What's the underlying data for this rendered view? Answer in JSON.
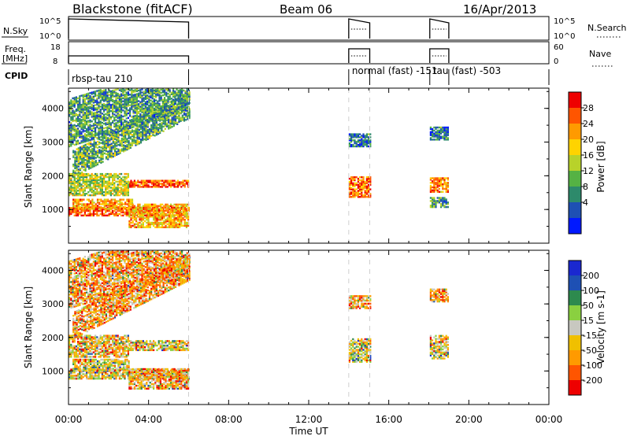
{
  "header": {
    "title_left": "Blackstone (fitACF)",
    "title_center": "Beam 06",
    "title_right": "16/Apr/2013"
  },
  "aux_panels": {
    "nsky_label": "N.Sky",
    "nsky_ticks": [
      "10^5",
      "10^0"
    ],
    "nsky_right_ticks": [
      "10^5",
      "10^0"
    ],
    "nsearch_label": "N.Search",
    "freq_label_1": "Freq.",
    "freq_label_2": "[MHz]",
    "freq_ticks": [
      "18",
      "8"
    ],
    "nave_label": "Nave",
    "nave_ticks": [
      "60",
      "0"
    ],
    "cpid_label": "CPID",
    "cpid_segments": [
      {
        "label": "rbsp-tau 210",
        "start_h": 0.0,
        "end_h": 6.0
      },
      {
        "label": "normal (fast) -151",
        "start_h": 14.0,
        "end_h": 15.05
      },
      {
        "label": "tau (fast) -503",
        "start_h": 18.05,
        "end_h": 19.0
      }
    ]
  },
  "colors": {
    "power": [
      "#0019ff",
      "#1e50b4",
      "#2d8a6b",
      "#55b244",
      "#b8d22a",
      "#ffd300",
      "#ff9a00",
      "#ff5500",
      "#ee0000"
    ],
    "velocity": [
      "#ee0000",
      "#ff5500",
      "#ff9a00",
      "#f0c000",
      "#c8c8c0",
      "#8ad040",
      "#2d8a4e",
      "#1e50b4",
      "#1a28d0"
    ]
  },
  "chart_data": [
    {
      "type": "heatmap",
      "name": "power",
      "ylabel": "Slant Range [km]",
      "xlabel": "Time UT",
      "xlim": [
        0,
        24
      ],
      "ylim": [
        0,
        4600
      ],
      "yticks": [
        "1000",
        "2000",
        "3000",
        "4000"
      ],
      "xticks": [
        "00:00",
        "04:00",
        "08:00",
        "12:00",
        "16:00",
        "20:00",
        "00:00"
      ],
      "colorbar_label": "Power [dB]",
      "colorbar_ticks": [
        "4",
        "8",
        "12",
        "16",
        "20",
        "24",
        "28"
      ],
      "regions": [
        {
          "t": [
            0.0,
            6.0
          ],
          "r": [
            850,
            1100
          ],
          "level": 0.9,
          "slope": 0
        },
        {
          "t": [
            0.2,
            3.2
          ],
          "r": [
            1050,
            1350
          ],
          "level": 0.75,
          "slope": 0
        },
        {
          "t": [
            3.0,
            6.0
          ],
          "r": [
            1700,
            1900
          ],
          "level": 0.9,
          "slope": 0
        },
        {
          "t": [
            0.0,
            3.0
          ],
          "r": [
            1450,
            2100
          ],
          "level": 0.5,
          "slope": 0
        },
        {
          "t": [
            3.0,
            6.0
          ],
          "r": [
            500,
            1200
          ],
          "level": 0.7,
          "slope": 0
        },
        {
          "t": [
            0.2,
            6.0
          ],
          "r": [
            2000,
            2800
          ],
          "level": 0.35,
          "slope": 300
        },
        {
          "t": [
            0.0,
            6.0
          ],
          "r": [
            2900,
            4300
          ],
          "level": 0.3,
          "slope": 180
        },
        {
          "t": [
            14.0,
            15.05
          ],
          "r": [
            1400,
            2000
          ],
          "level": 0.85,
          "slope": 0
        },
        {
          "t": [
            14.0,
            15.05
          ],
          "r": [
            2900,
            3300
          ],
          "level": 0.2,
          "slope": 0
        },
        {
          "t": [
            18.05,
            19.0
          ],
          "r": [
            1550,
            2000
          ],
          "level": 0.8,
          "slope": 0
        },
        {
          "t": [
            18.05,
            19.0
          ],
          "r": [
            1100,
            1400
          ],
          "level": 0.3,
          "slope": 0
        },
        {
          "t": [
            18.05,
            19.0
          ],
          "r": [
            3100,
            3500
          ],
          "level": 0.2,
          "slope": 0
        }
      ]
    },
    {
      "type": "heatmap",
      "name": "velocity",
      "ylabel": "Slant Range [km]",
      "xlabel": "Time UT",
      "xlim": [
        0,
        24
      ],
      "ylim": [
        0,
        4600
      ],
      "yticks": [
        "1000",
        "2000",
        "3000",
        "4000"
      ],
      "xticks": [
        "00:00",
        "04:00",
        "08:00",
        "12:00",
        "16:00",
        "20:00",
        "00:00"
      ],
      "colorbar_label": "Velocity [m s-1]",
      "colorbar_ticks": [
        "200",
        "100",
        "50",
        "15",
        "-15",
        "-50",
        "-100",
        "-200"
      ],
      "regions": [
        {
          "t": [
            0.0,
            6.0
          ],
          "r": [
            800,
            1100
          ],
          "level": 0.45,
          "slope": 0
        },
        {
          "t": [
            0.2,
            3.0
          ],
          "r": [
            1050,
            1400
          ],
          "level": 0.45,
          "slope": 0
        },
        {
          "t": [
            3.0,
            6.0
          ],
          "r": [
            1650,
            1950
          ],
          "level": 0.45,
          "slope": 0
        },
        {
          "t": [
            0.0,
            3.0
          ],
          "r": [
            1450,
            2100
          ],
          "level": 0.4,
          "slope": 0
        },
        {
          "t": [
            3.0,
            6.0
          ],
          "r": [
            500,
            1100
          ],
          "level": 0.3,
          "slope": 0
        },
        {
          "t": [
            0.2,
            6.0
          ],
          "r": [
            2000,
            2800
          ],
          "level": 0.3,
          "slope": 300
        },
        {
          "t": [
            0.0,
            6.0
          ],
          "r": [
            2900,
            4300
          ],
          "level": 0.3,
          "slope": 180
        },
        {
          "t": [
            14.0,
            15.05
          ],
          "r": [
            1300,
            2000
          ],
          "level": 0.5,
          "slope": 0
        },
        {
          "t": [
            14.0,
            15.05
          ],
          "r": [
            2900,
            3300
          ],
          "level": 0.3,
          "slope": 0
        },
        {
          "t": [
            18.05,
            19.0
          ],
          "r": [
            1400,
            2100
          ],
          "level": 0.45,
          "slope": 0
        },
        {
          "t": [
            18.05,
            19.0
          ],
          "r": [
            3100,
            3500
          ],
          "level": 0.3,
          "slope": 0
        }
      ]
    }
  ]
}
